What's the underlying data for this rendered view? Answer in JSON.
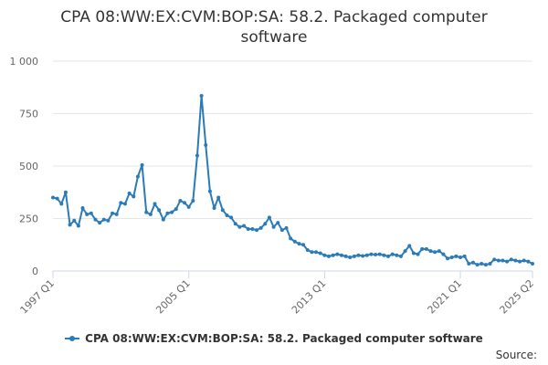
{
  "chart_data": {
    "type": "line",
    "title": "CPA 08:WW:EX:CVM:BOP:SA: 58.2. Packaged computer software",
    "xlabel": "",
    "ylabel": "",
    "ylim": [
      0,
      1000
    ],
    "yticks": [
      0,
      250,
      500,
      750,
      1000
    ],
    "ytick_labels": [
      "0",
      "250",
      "500",
      "750",
      "1 000"
    ],
    "xtick_labels": [
      "1997 Q1",
      "2005 Q1",
      "2013 Q1",
      "2021 Q1",
      "2025 Q2"
    ],
    "grid": "horizontal",
    "legend_position": "bottom",
    "series": [
      {
        "name": "CPA 08:WW:EX:CVM:BOP:SA: 58.2. Packaged computer software",
        "color": "#2b7bb9",
        "x": [
          "1997 Q1",
          "1997 Q2",
          "1997 Q3",
          "1997 Q4",
          "1998 Q1",
          "1998 Q2",
          "1998 Q3",
          "1998 Q4",
          "1999 Q1",
          "1999 Q2",
          "1999 Q3",
          "1999 Q4",
          "2000 Q1",
          "2000 Q2",
          "2000 Q3",
          "2000 Q4",
          "2001 Q1",
          "2001 Q2",
          "2001 Q3",
          "2001 Q4",
          "2002 Q1",
          "2002 Q2",
          "2002 Q3",
          "2002 Q4",
          "2003 Q1",
          "2003 Q2",
          "2003 Q3",
          "2003 Q4",
          "2004 Q1",
          "2004 Q2",
          "2004 Q3",
          "2004 Q4",
          "2005 Q1",
          "2005 Q2",
          "2005 Q3",
          "2005 Q4",
          "2006 Q1",
          "2006 Q2",
          "2006 Q3",
          "2006 Q4",
          "2007 Q1",
          "2007 Q2",
          "2007 Q3",
          "2007 Q4",
          "2008 Q1",
          "2008 Q2",
          "2008 Q3",
          "2008 Q4",
          "2009 Q1",
          "2009 Q2",
          "2009 Q3",
          "2009 Q4",
          "2010 Q1",
          "2010 Q2",
          "2010 Q3",
          "2010 Q4",
          "2011 Q1",
          "2011 Q2",
          "2011 Q3",
          "2011 Q4",
          "2012 Q1",
          "2012 Q2",
          "2012 Q3",
          "2012 Q4",
          "2013 Q1",
          "2013 Q2",
          "2013 Q3",
          "2013 Q4",
          "2014 Q1",
          "2014 Q2",
          "2014 Q3",
          "2014 Q4",
          "2015 Q1",
          "2015 Q2",
          "2015 Q3",
          "2015 Q4",
          "2016 Q1",
          "2016 Q2",
          "2016 Q3",
          "2016 Q4",
          "2017 Q1",
          "2017 Q2",
          "2017 Q3",
          "2017 Q4",
          "2018 Q1",
          "2018 Q2",
          "2018 Q3",
          "2018 Q4",
          "2019 Q1",
          "2019 Q2",
          "2019 Q3",
          "2019 Q4",
          "2020 Q1",
          "2020 Q2",
          "2020 Q3",
          "2020 Q4",
          "2021 Q1",
          "2021 Q2",
          "2021 Q3",
          "2021 Q4",
          "2022 Q1",
          "2022 Q2",
          "2022 Q3",
          "2022 Q4",
          "2023 Q1",
          "2023 Q2",
          "2023 Q3",
          "2023 Q4",
          "2024 Q1",
          "2024 Q2",
          "2024 Q3",
          "2024 Q4",
          "2025 Q1",
          "2025 Q2"
        ],
        "values": [
          350,
          345,
          320,
          375,
          220,
          240,
          215,
          300,
          270,
          275,
          245,
          230,
          245,
          240,
          275,
          270,
          325,
          320,
          370,
          355,
          450,
          505,
          280,
          270,
          320,
          290,
          245,
          275,
          280,
          295,
          335,
          325,
          305,
          335,
          550,
          835,
          600,
          380,
          300,
          350,
          290,
          265,
          255,
          225,
          210,
          215,
          200,
          200,
          195,
          205,
          225,
          255,
          210,
          230,
          195,
          205,
          155,
          140,
          130,
          125,
          100,
          90,
          90,
          85,
          75,
          70,
          75,
          80,
          75,
          70,
          65,
          70,
          75,
          72,
          75,
          80,
          78,
          80,
          75,
          70,
          80,
          75,
          70,
          95,
          120,
          85,
          80,
          105,
          105,
          95,
          90,
          95,
          80,
          60,
          65,
          70,
          65,
          70,
          35,
          40,
          30,
          35,
          30,
          35,
          55,
          50,
          50,
          45,
          55,
          50,
          45,
          50,
          45,
          35
        ]
      }
    ]
  },
  "legend": {
    "label": "CPA 08:WW:EX:CVM:BOP:SA: 58.2. Packaged computer software"
  },
  "footer": {
    "source_label": "Source:"
  }
}
